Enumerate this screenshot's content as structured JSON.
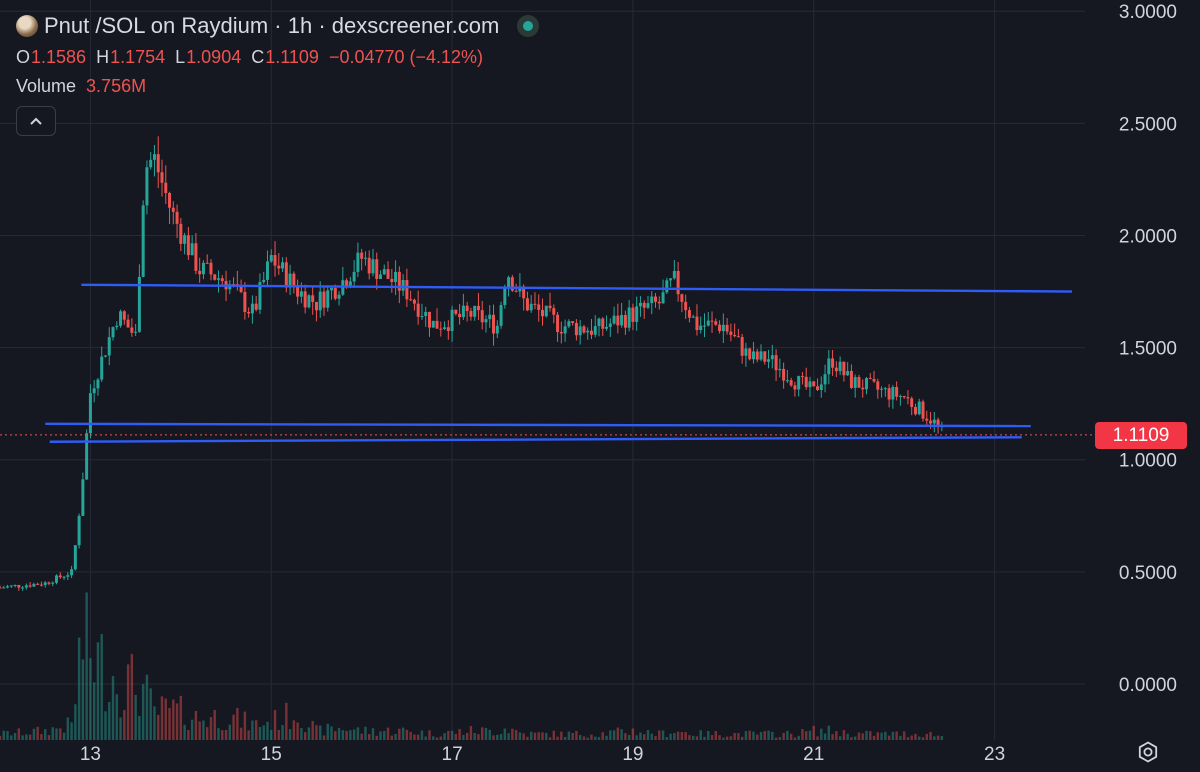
{
  "header": {
    "title": "Pnut /SOL on Raydium · 1h · dexscreener.com",
    "ohlc": [
      {
        "key": "O",
        "value": "1.1586"
      },
      {
        "key": "H",
        "value": "1.1754"
      },
      {
        "key": "L",
        "value": "1.0904"
      },
      {
        "key": "C",
        "value": "1.1109"
      }
    ],
    "change": "−0.04770 (−4.12%)",
    "volume_label": "Volume",
    "volume_value": "3.756M"
  },
  "price_tag": "1.1109",
  "icons": {
    "collapse": "chevron-up-icon",
    "live": "live-status-icon",
    "settings": "gear-icon"
  },
  "colors": {
    "background": "#161821",
    "up": "#26a69a",
    "down": "#ef5350",
    "trendline": "#2f5cf5",
    "price_tag": "#f23645"
  },
  "chart_data": {
    "type": "candlestick",
    "title": "Pnut /SOL on Raydium · 1h · dexscreener.com",
    "y_ticks": [
      "3.0000",
      "2.5000",
      "2.0000",
      "1.5000",
      "1.0000",
      "0.5000",
      "0.0000"
    ],
    "y_tick_values": [
      3.0,
      2.5,
      2.0,
      1.5,
      1.0,
      0.5,
      0.0
    ],
    "ylim": [
      -0.25,
      3.05
    ],
    "x_ticks": [
      "13",
      "15",
      "17",
      "19",
      "21",
      "23"
    ],
    "x_tick_values": [
      13,
      15,
      17,
      19,
      21,
      23
    ],
    "xlim": [
      12.0,
      24.0
    ],
    "last_price": 1.1109,
    "trendlines": [
      {
        "x1": 12.9,
        "y1": 1.78,
        "x2": 24.0,
        "y2": 1.75
      },
      {
        "x1": 12.5,
        "y1": 1.16,
        "x2": 23.4,
        "y2": 1.15
      },
      {
        "x1": 12.55,
        "y1": 1.08,
        "x2": 23.3,
        "y2": 1.1
      }
    ],
    "series": [
      {
        "x": [
          12.0,
          12.5,
          12.8,
          12.9,
          13.0,
          13.3,
          13.5,
          13.6,
          13.7,
          13.9,
          14.2,
          14.5,
          14.8,
          15.0,
          15.3,
          15.5,
          15.8,
          16.0,
          16.5,
          16.8,
          17.2,
          17.5,
          17.6,
          17.8,
          18.2,
          18.6,
          19.0,
          19.3,
          19.45,
          19.7,
          20.0,
          20.3,
          20.5,
          20.8,
          21.0,
          21.2,
          21.4,
          21.8,
          22.0,
          22.3,
          22.45
        ],
        "close": [
          0.43,
          0.45,
          0.5,
          0.85,
          1.3,
          1.65,
          1.55,
          2.3,
          2.35,
          2.1,
          1.85,
          1.8,
          1.65,
          1.9,
          1.75,
          1.7,
          1.8,
          1.9,
          1.75,
          1.6,
          1.65,
          1.6,
          1.85,
          1.7,
          1.6,
          1.58,
          1.65,
          1.7,
          1.8,
          1.6,
          1.6,
          1.45,
          1.45,
          1.35,
          1.3,
          1.45,
          1.35,
          1.3,
          1.28,
          1.18,
          1.11
        ],
        "volume": [
          0.02,
          0.03,
          0.05,
          0.33,
          0.28,
          0.2,
          0.18,
          0.16,
          0.09,
          0.1,
          0.07,
          0.08,
          0.05,
          0.06,
          0.09,
          0.03,
          0.04,
          0.03,
          0.03,
          0.02,
          0.03,
          0.03,
          0.04,
          0.02,
          0.02,
          0.02,
          0.03,
          0.02,
          0.03,
          0.02,
          0.02,
          0.02,
          0.02,
          0.02,
          0.03,
          0.03,
          0.02,
          0.02,
          0.02,
          0.02,
          0.01
        ]
      }
    ]
  }
}
